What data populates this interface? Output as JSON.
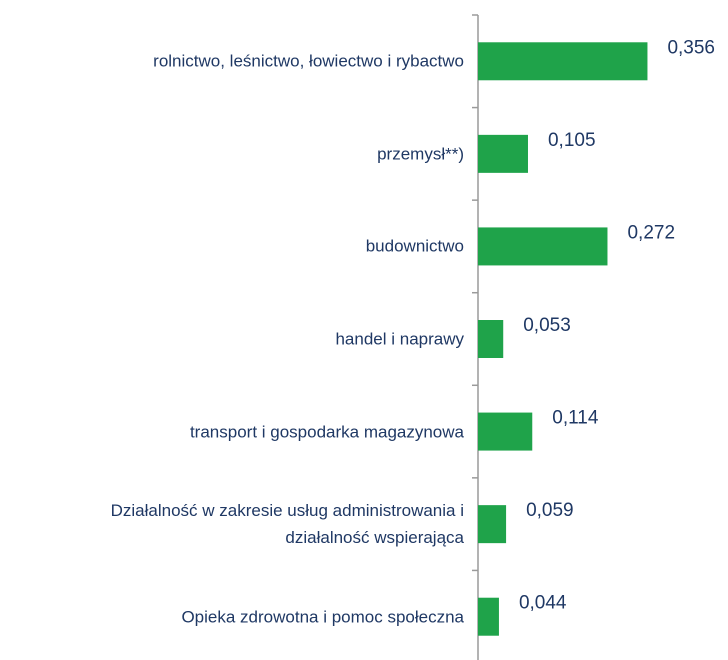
{
  "chart_data": {
    "type": "bar",
    "orientation": "horizontal",
    "categories": [
      "rolnictwo, leśnictwo, łowiectwo i rybactwo",
      "przemysł**)",
      "budownictwo",
      "handel i naprawy",
      "transport i gospodarka magazynowa",
      "Działalność w zakresie usług administrowania i\ndziałalność wspierająca",
      "Opieka zdrowotna i pomoc społeczna"
    ],
    "values": [
      0.356,
      0.105,
      0.272,
      0.053,
      0.114,
      0.059,
      0.044
    ],
    "value_labels": [
      "0,356",
      "0,105",
      "0,272",
      "0,053",
      "0,114",
      "0,059",
      "0,044"
    ],
    "color": "#1fa34a",
    "xlim": [
      0,
      0.5
    ]
  }
}
